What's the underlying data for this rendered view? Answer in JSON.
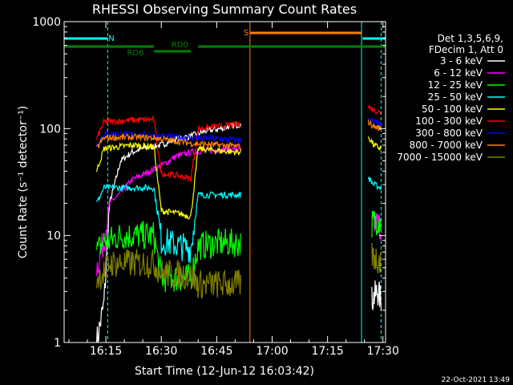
{
  "chart_data": {
    "type": "line",
    "title": "RHESSI Observing Summary Count Rates",
    "xlabel": "Start Time (12-Jun-12 16:03:42)",
    "ylabel": "Count Rate (s⁻¹ detector⁻¹)",
    "yscale": "log",
    "ylim": [
      1,
      1000
    ],
    "xlim_minutes": [
      3.7,
      90.7
    ],
    "x_ticks": [
      {
        "t": 15,
        "label": "16:15"
      },
      {
        "t": 30,
        "label": "16:30"
      },
      {
        "t": 45,
        "label": "16:45"
      },
      {
        "t": 60,
        "label": "17:00"
      },
      {
        "t": 75,
        "label": "17:15"
      },
      {
        "t": 90,
        "label": "17:30"
      }
    ],
    "y_ticks": [
      {
        "v": 1,
        "label": "1"
      },
      {
        "v": 10,
        "label": "10"
      },
      {
        "v": 100,
        "label": "100"
      },
      {
        "v": 1000,
        "label": "1000"
      }
    ],
    "legend_header": [
      "Det 1,3,5,6,9,",
      "FDecim 1, Att 0"
    ],
    "legend_position": "right",
    "series": [
      {
        "name": "3 - 6 keV",
        "color": "#ffffff",
        "segments": [
          {
            "points": [
              [
                12.5,
                1.0
              ],
              [
                14.5,
                2.3
              ],
              [
                16.0,
                20
              ],
              [
                19.0,
                50
              ],
              [
                22.0,
                60
              ],
              [
                25.0,
                65
              ],
              [
                30.0,
                70
              ],
              [
                34.0,
                80
              ],
              [
                38.0,
                85
              ],
              [
                42.0,
                95
              ],
              [
                46.0,
                100
              ],
              [
                48.5,
                105
              ],
              [
                51.5,
                110
              ]
            ]
          },
          {
            "points": [
              [
                87.0,
                2.5
              ],
              [
                88.5,
                3.0
              ],
              [
                89.5,
                2.5
              ]
            ]
          }
        ]
      },
      {
        "name": "6 - 12 keV",
        "color": "#ff00ff",
        "segments": [
          {
            "points": [
              [
                12.5,
                5
              ],
              [
                14.5,
                9
              ],
              [
                16.0,
                20
              ],
              [
                19.0,
                25
              ],
              [
                22.0,
                33
              ],
              [
                25.0,
                37
              ],
              [
                30.0,
                45
              ],
              [
                34.0,
                55
              ],
              [
                38.0,
                60
              ],
              [
                42.0,
                62
              ],
              [
                46.0,
                63
              ],
              [
                48.5,
                64
              ],
              [
                51.5,
                65
              ]
            ]
          },
          {
            "points": [
              [
                87.0,
                12
              ],
              [
                88.5,
                13
              ],
              [
                89.5,
                12
              ]
            ]
          }
        ]
      },
      {
        "name": "12 - 25 keV",
        "color": "#00ff00",
        "segments": [
          {
            "points": [
              [
                12.5,
                7
              ],
              [
                14.5,
                9
              ],
              [
                16.0,
                9
              ],
              [
                19.0,
                10
              ],
              [
                22.0,
                10
              ],
              [
                28.0,
                10
              ],
              [
                30.0,
                4
              ],
              [
                35.0,
                4
              ],
              [
                38.0,
                4
              ],
              [
                40.0,
                8
              ],
              [
                46.0,
                8.5
              ],
              [
                51.5,
                8.5
              ]
            ]
          },
          {
            "points": [
              [
                87.0,
                13
              ],
              [
                88.5,
                14
              ],
              [
                89.5,
                13
              ]
            ]
          }
        ]
      },
      {
        "name": "25 - 50 keV",
        "color": "#00ffff",
        "segments": [
          {
            "points": [
              [
                12.5,
                20
              ],
              [
                14.5,
                28
              ],
              [
                22.0,
                28
              ],
              [
                28.0,
                28
              ],
              [
                30.0,
                9
              ],
              [
                35.0,
                8
              ],
              [
                38.0,
                7.5
              ],
              [
                40.0,
                24
              ],
              [
                46.0,
                24
              ],
              [
                51.5,
                24
              ]
            ]
          },
          {
            "points": [
              [
                86.0,
                35
              ],
              [
                87.5,
                30
              ],
              [
                89.5,
                28
              ]
            ]
          }
        ]
      },
      {
        "name": "50 - 100 keV",
        "color": "#ffff00",
        "segments": [
          {
            "points": [
              [
                12.5,
                40
              ],
              [
                14.5,
                65
              ],
              [
                22.0,
                70
              ],
              [
                28.0,
                68
              ],
              [
                30.0,
                17
              ],
              [
                35.0,
                16
              ],
              [
                38.0,
                15
              ],
              [
                40.0,
                65
              ],
              [
                46.0,
                62
              ],
              [
                51.5,
                60
              ]
            ]
          },
          {
            "points": [
              [
                86.0,
                85
              ],
              [
                87.5,
                70
              ],
              [
                89.5,
                65
              ]
            ]
          }
        ]
      },
      {
        "name": "100 - 300 keV",
        "color": "#ff0000",
        "segments": [
          {
            "points": [
              [
                12.5,
                80
              ],
              [
                14.5,
                115
              ],
              [
                22.0,
                120
              ],
              [
                28.0,
                122
              ],
              [
                30.0,
                38
              ],
              [
                35.0,
                36
              ],
              [
                38.0,
                34
              ],
              [
                40.0,
                100
              ],
              [
                46.0,
                105
              ],
              [
                51.5,
                110
              ]
            ]
          },
          {
            "points": [
              [
                86.0,
                160
              ],
              [
                87.5,
                150
              ],
              [
                89.5,
                140
              ]
            ]
          }
        ]
      },
      {
        "name": "300 - 800 keV",
        "color": "#0000ff",
        "segments": [
          {
            "points": [
              [
                12.5,
                70
              ],
              [
                14.5,
                90
              ],
              [
                22.0,
                88
              ],
              [
                28.0,
                86
              ],
              [
                32.0,
                84
              ],
              [
                38.0,
                82
              ],
              [
                46.0,
                80
              ],
              [
                51.5,
                78
              ]
            ]
          },
          {
            "points": [
              [
                86.0,
                125
              ],
              [
                87.5,
                115
              ],
              [
                89.5,
                110
              ]
            ]
          }
        ]
      },
      {
        "name": "800 - 7000 keV",
        "color": "#ff8000",
        "segments": [
          {
            "points": [
              [
                12.5,
                65
              ],
              [
                14.5,
                82
              ],
              [
                22.0,
                83
              ],
              [
                28.0,
                82
              ],
              [
                32.0,
                78
              ],
              [
                38.0,
                73
              ],
              [
                46.0,
                70
              ],
              [
                51.5,
                68
              ]
            ]
          },
          {
            "points": [
              [
                86.0,
                115
              ],
              [
                87.5,
                105
              ],
              [
                89.5,
                100
              ]
            ]
          }
        ]
      },
      {
        "name": "7000 - 15000 keV",
        "color": "#808000",
        "segments": [
          {
            "points": [
              [
                12.5,
                4
              ],
              [
                14.5,
                4.5
              ],
              [
                16.0,
                5.5
              ],
              [
                22.0,
                5.5
              ],
              [
                28.0,
                5.5
              ],
              [
                30.0,
                4.5
              ],
              [
                35.0,
                4.3
              ],
              [
                38.0,
                4.2
              ],
              [
                40.0,
                3.5
              ],
              [
                46.0,
                3.5
              ],
              [
                51.5,
                3.5
              ]
            ]
          },
          {
            "points": [
              [
                87.0,
                6.5
              ],
              [
                88.5,
                6
              ],
              [
                89.5,
                5.5
              ]
            ]
          }
        ]
      }
    ],
    "state_bars": [
      {
        "label": "N",
        "color": "#00ffff",
        "intervals": [
          [
            3.7,
            15.5
          ],
          [
            84.5,
            90.7
          ]
        ],
        "label_at": 16.5
      },
      {
        "label": "S",
        "color": "#ff8000",
        "intervals": [
          [
            54.0,
            84.2
          ]
        ],
        "label_at": 53.0
      },
      {
        "label": "RD0",
        "color": "#008000",
        "intervals": [
          [
            3.7,
            28.0
          ],
          [
            40.0,
            90.7
          ]
        ],
        "label_at": 35.0
      },
      {
        "label": "RD6",
        "color": "#008000",
        "intervals": [
          [
            28.0,
            38.0
          ]
        ],
        "label_at": 23.0
      }
    ],
    "vertical_markers": [
      {
        "t": 3.7,
        "color": "#00ffff",
        "style": "solid"
      },
      {
        "t": 15.5,
        "color": "#00ffff",
        "style": "dashed"
      },
      {
        "t": 54.0,
        "color": "#ff8000",
        "style": "solid"
      },
      {
        "t": 84.2,
        "color": "#00ffff",
        "style": "solid"
      },
      {
        "t": 89.5,
        "color": "#00ffff",
        "style": "dashed"
      },
      {
        "t": 90.7,
        "color": "#00ffff",
        "style": "dashed"
      }
    ]
  },
  "footer": {
    "timestamp": "22-Oct-2021 13:49"
  }
}
